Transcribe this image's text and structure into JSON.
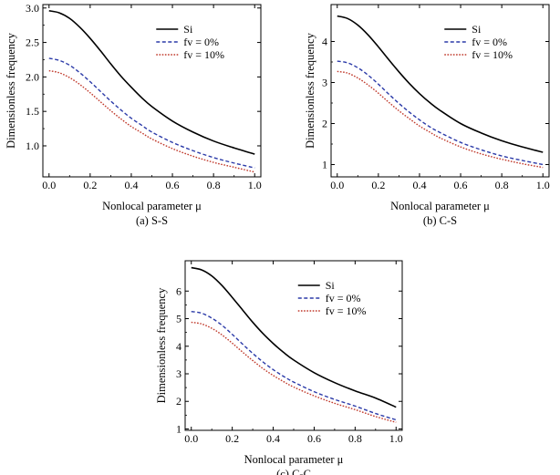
{
  "chart_data": [
    {
      "type": "line",
      "caption": "(a) S-S",
      "xlabel": "Nonlocal parameter μ",
      "ylabel": "Dimensionless frequency",
      "xlim": [
        -0.03,
        1.03
      ],
      "ylim": [
        0.55,
        3.05
      ],
      "xticks": [
        "0.0",
        "0.2",
        "0.4",
        "0.6",
        "0.8",
        "1.0"
      ],
      "xtick_values": [
        0.0,
        0.2,
        0.4,
        0.6,
        0.8,
        1.0
      ],
      "yticks": [
        "1.0",
        "1.5",
        "2.0",
        "2.5",
        "3.0"
      ],
      "ytick_values": [
        1.0,
        1.5,
        2.0,
        2.5,
        3.0
      ],
      "legend": "top-right",
      "x": [
        0.0,
        0.05,
        0.1,
        0.15,
        0.2,
        0.25,
        0.3,
        0.35,
        0.4,
        0.45,
        0.5,
        0.6,
        0.7,
        0.8,
        0.9,
        1.0
      ],
      "series": [
        {
          "name": "Si",
          "color": "#000000",
          "dash": "solid",
          "values": [
            2.96,
            2.93,
            2.85,
            2.72,
            2.56,
            2.38,
            2.19,
            2.01,
            1.85,
            1.7,
            1.57,
            1.36,
            1.2,
            1.07,
            0.97,
            0.88
          ]
        },
        {
          "name": "fv = 0%",
          "color": "#2b3aa8",
          "dash": "dashed",
          "values": [
            2.27,
            2.24,
            2.17,
            2.06,
            1.93,
            1.79,
            1.65,
            1.52,
            1.4,
            1.3,
            1.2,
            1.05,
            0.93,
            0.83,
            0.75,
            0.68
          ]
        },
        {
          "name": "fv = 10%",
          "color": "#c0392b",
          "dash": "dotted",
          "values": [
            2.09,
            2.06,
            1.99,
            1.89,
            1.77,
            1.64,
            1.51,
            1.39,
            1.28,
            1.19,
            1.1,
            0.96,
            0.85,
            0.76,
            0.69,
            0.62
          ]
        }
      ]
    },
    {
      "type": "line",
      "caption": "(b) C-S",
      "xlabel": "Nonlocal parameter μ",
      "ylabel": "Dimensionless frequency",
      "xlim": [
        -0.03,
        1.03
      ],
      "ylim": [
        0.7,
        4.9
      ],
      "xticks": [
        "0.0",
        "0.2",
        "0.4",
        "0.6",
        "0.8",
        "1.0"
      ],
      "xtick_values": [
        0.0,
        0.2,
        0.4,
        0.6,
        0.8,
        1.0
      ],
      "yticks": [
        "1",
        "2",
        "3",
        "4"
      ],
      "ytick_values": [
        1,
        2,
        3,
        4
      ],
      "legend": "top-right",
      "x": [
        0.0,
        0.05,
        0.1,
        0.15,
        0.2,
        0.25,
        0.3,
        0.35,
        0.4,
        0.45,
        0.5,
        0.6,
        0.7,
        0.8,
        0.9,
        1.0
      ],
      "series": [
        {
          "name": "Si",
          "color": "#000000",
          "dash": "solid",
          "values": [
            4.62,
            4.56,
            4.4,
            4.16,
            3.87,
            3.56,
            3.26,
            2.98,
            2.73,
            2.51,
            2.32,
            2.0,
            1.77,
            1.58,
            1.43,
            1.3
          ]
        },
        {
          "name": "fv = 0%",
          "color": "#2b3aa8",
          "dash": "dashed",
          "values": [
            3.52,
            3.48,
            3.36,
            3.18,
            2.96,
            2.72,
            2.49,
            2.28,
            2.09,
            1.92,
            1.78,
            1.54,
            1.36,
            1.21,
            1.1,
            1.0
          ]
        },
        {
          "name": "fv = 10%",
          "color": "#c0392b",
          "dash": "dotted",
          "values": [
            3.27,
            3.23,
            3.11,
            2.94,
            2.74,
            2.52,
            2.31,
            2.12,
            1.94,
            1.79,
            1.65,
            1.43,
            1.26,
            1.13,
            1.02,
            0.93
          ]
        }
      ]
    },
    {
      "type": "line",
      "caption": "(c) C-C",
      "xlabel": "Nonlocal parameter μ",
      "ylabel": "Dimensionless frequency",
      "xlim": [
        -0.03,
        1.03
      ],
      "ylim": [
        0.95,
        7.1
      ],
      "xticks": [
        "0.0",
        "0.2",
        "0.4",
        "0.6",
        "0.8",
        "1.0"
      ],
      "xtick_values": [
        0.0,
        0.2,
        0.4,
        0.6,
        0.8,
        1.0
      ],
      "yticks": [
        "1",
        "2",
        "3",
        "4",
        "5",
        "6"
      ],
      "ytick_values": [
        1,
        2,
        3,
        4,
        5,
        6
      ],
      "legend": "top-right",
      "x": [
        0.0,
        0.05,
        0.1,
        0.15,
        0.2,
        0.25,
        0.3,
        0.35,
        0.4,
        0.45,
        0.5,
        0.6,
        0.7,
        0.8,
        0.9,
        1.0
      ],
      "series": [
        {
          "name": "Si",
          "color": "#000000",
          "dash": "solid",
          "values": [
            6.85,
            6.77,
            6.55,
            6.2,
            5.77,
            5.32,
            4.87,
            4.46,
            4.1,
            3.78,
            3.5,
            3.04,
            2.68,
            2.38,
            2.12,
            1.79
          ]
        },
        {
          "name": "fv = 0%",
          "color": "#2b3aa8",
          "dash": "dashed",
          "values": [
            5.26,
            5.2,
            5.02,
            4.76,
            4.43,
            4.08,
            3.74,
            3.43,
            3.15,
            2.91,
            2.7,
            2.35,
            2.07,
            1.83,
            1.56,
            1.33
          ]
        },
        {
          "name": "fv = 10%",
          "color": "#c0392b",
          "dash": "dotted",
          "values": [
            4.87,
            4.81,
            4.65,
            4.41,
            4.11,
            3.79,
            3.48,
            3.19,
            2.94,
            2.72,
            2.52,
            2.2,
            1.93,
            1.7,
            1.45,
            1.24
          ]
        }
      ]
    }
  ]
}
